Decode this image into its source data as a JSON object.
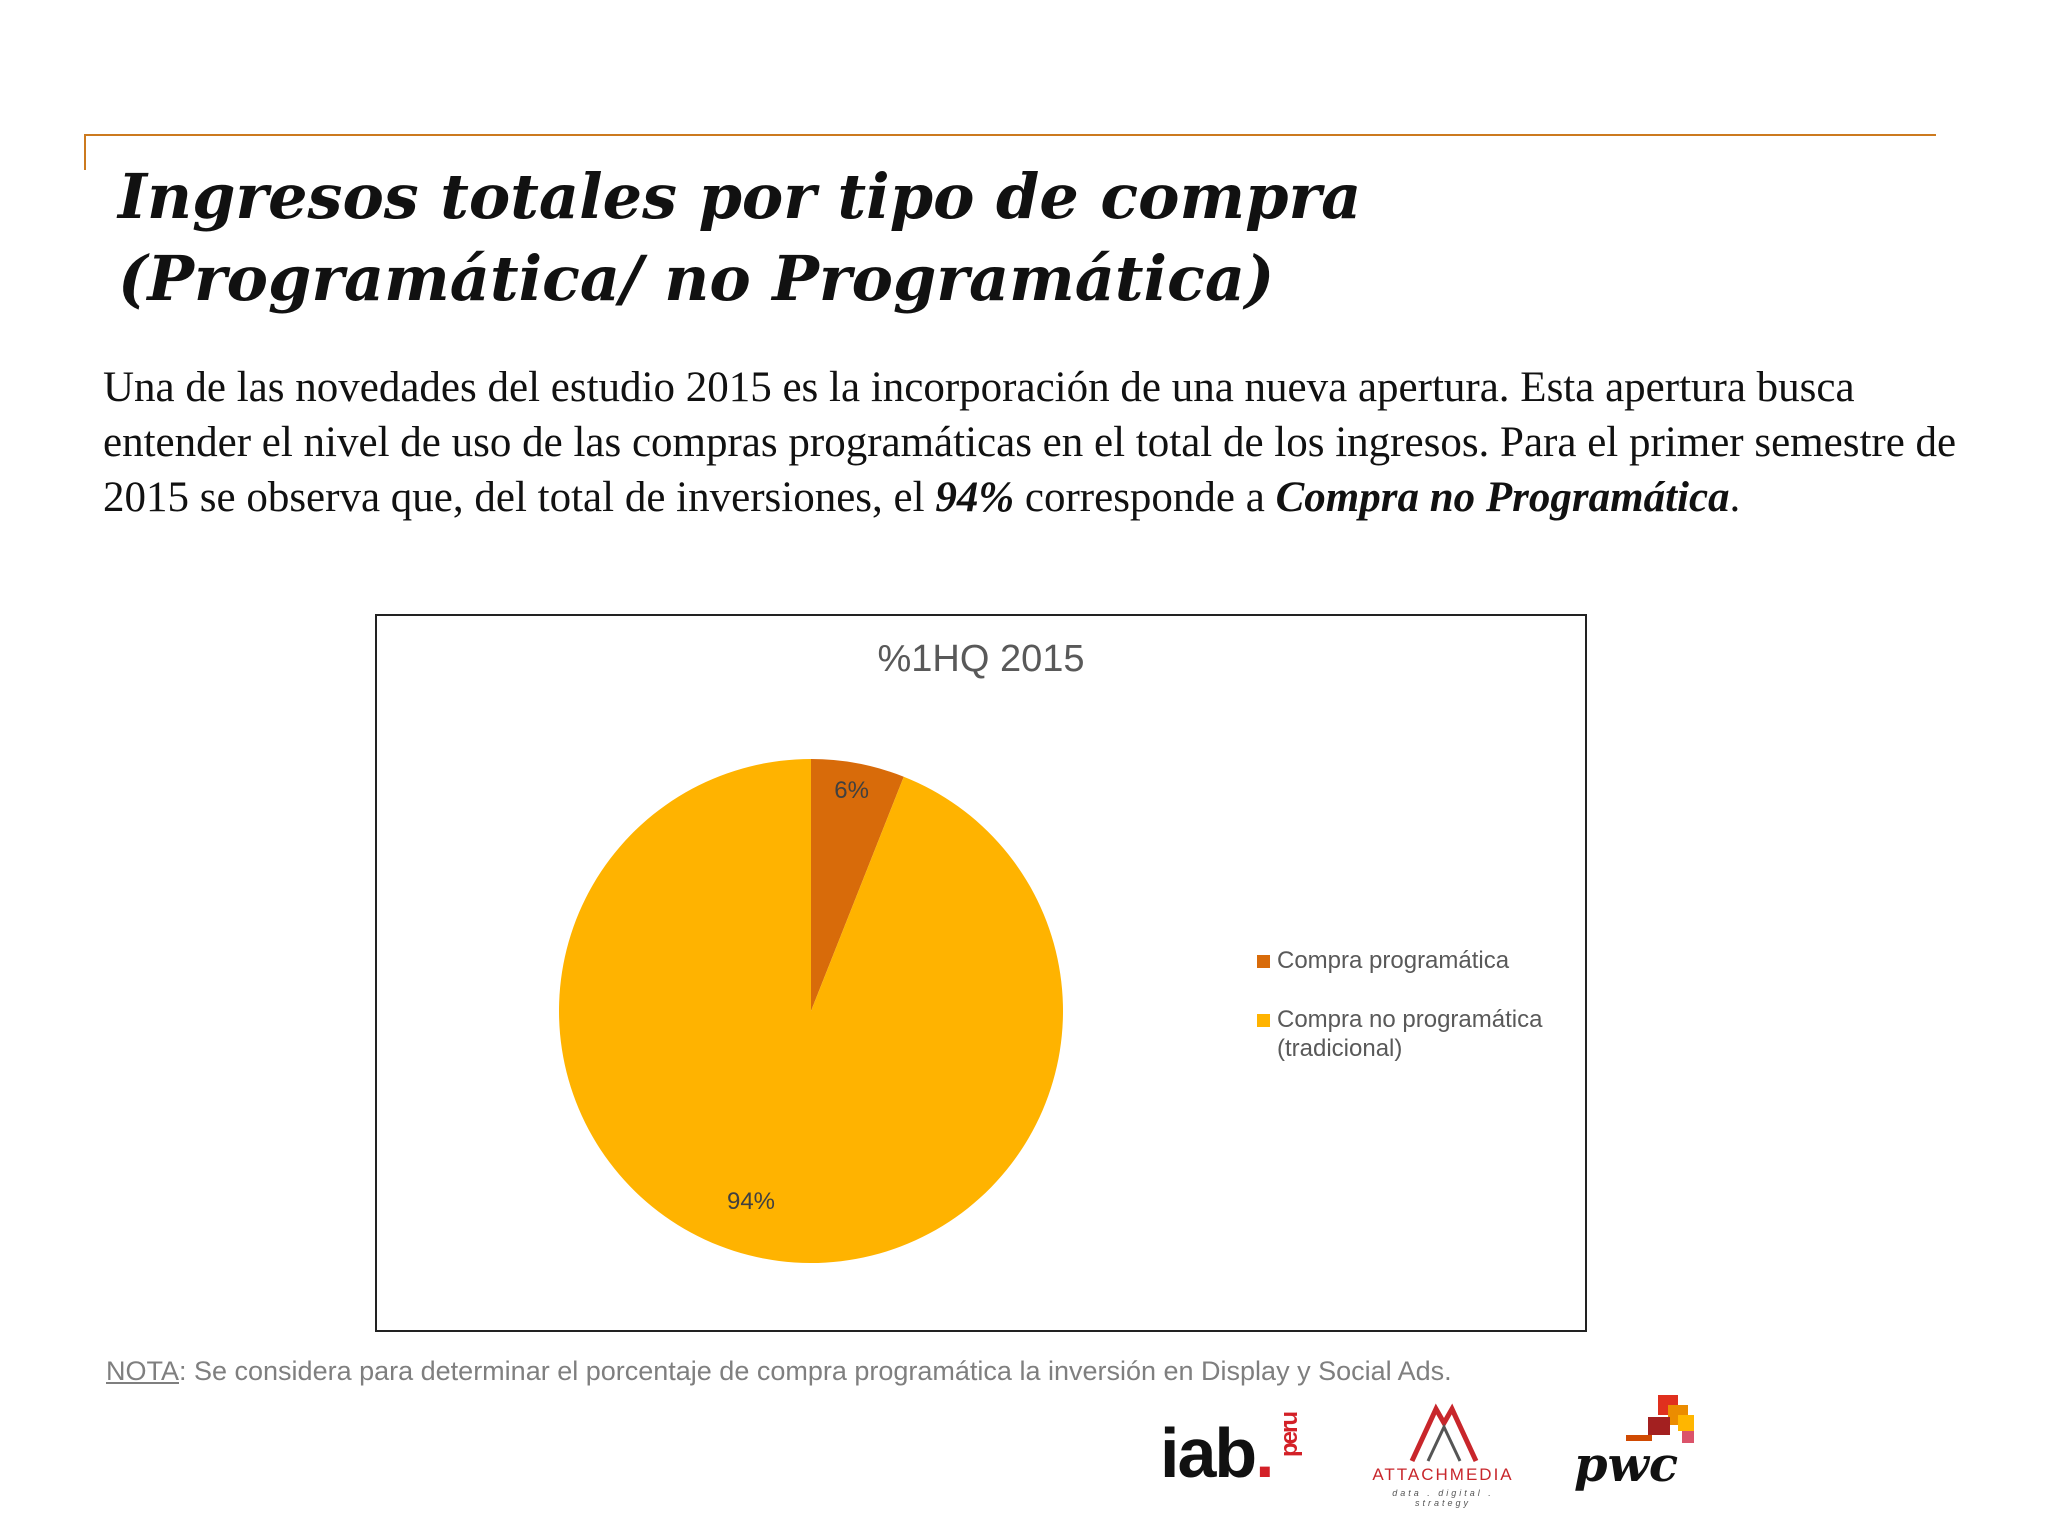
{
  "slide": {
    "title_line1": "Ingresos totales por tipo de compra",
    "title_line2": "(Programática/ no Programática)",
    "intro": {
      "text": "Una de las novedades del estudio 2015 es la incorporación de una nueva apertura. Esta apertura busca entender el nivel de uso de las compras programáticas en el total de los ingresos. Para el primer semestre de 2015 se observa que, del total de inversiones, el ",
      "highlight_pct": "94%",
      "middle": " corresponde a ",
      "highlight_label": "Compra no Programática",
      "end": "."
    },
    "note": {
      "label": "NOTA",
      "text": ": Se considera para determinar el porcentaje de compra programática la inversión en Display y Social Ads."
    },
    "logos": {
      "iab": "iab",
      "iab_dot": ".",
      "iab_peru": "peru",
      "attach_word": "ATTACHMEDIA",
      "attach_tag": "data . digital . strategy",
      "pwc": "pwc"
    },
    "colors": {
      "rule": "#cc7a1f",
      "programmatic": "#d86b0a",
      "non_programmatic": "#ffb300"
    }
  },
  "chart_data": {
    "type": "pie",
    "title": "%1HQ 2015",
    "categories": [
      "Compra programática",
      "Compra no programática (tradicional)"
    ],
    "values": [
      6,
      94
    ],
    "data_labels": [
      "6%",
      "94%"
    ],
    "legend_entries": [
      {
        "line1": "Compra programática",
        "line2": ""
      },
      {
        "line1": "Compra no programática",
        "line2": "(tradicional)"
      }
    ],
    "colors": [
      "#d86b0a",
      "#ffb300"
    ],
    "legend_position": "right"
  }
}
